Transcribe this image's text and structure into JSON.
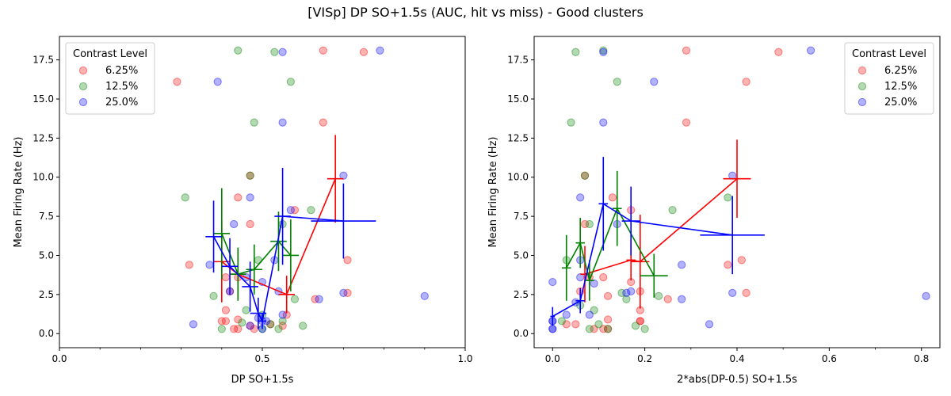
{
  "figure": {
    "title": "[VISp] DP SO+1.5s (AUC, hit vs miss) - Good clusters"
  },
  "colors": {
    "6.25%": "#ff0000",
    "12.5%": "#008000",
    "25.0%": "#0000ff"
  },
  "chart_data": [
    {
      "type": "scatter",
      "xlabel": "DP SO+1.5s",
      "ylabel": "Mean Firing Rate (Hz)",
      "xlim": [
        0,
        1
      ],
      "ylim": [
        -0.9,
        19.0
      ],
      "xticks": [
        0.0,
        0.5,
        1.0
      ],
      "xtick_labels": [
        "0.0",
        "0.5",
        "1.0"
      ],
      "xminor": [
        0.1,
        0.2,
        0.3,
        0.4,
        0.6,
        0.7,
        0.8,
        0.9
      ],
      "yticks": [
        0.0,
        2.5,
        5.0,
        7.5,
        10.0,
        12.5,
        15.0,
        17.5
      ],
      "ytick_labels": [
        "0.0",
        "2.5",
        "5.0",
        "7.5",
        "10.0",
        "12.5",
        "15.0",
        "17.5"
      ],
      "legend": {
        "title": "Contrast Level",
        "position": "upper-left",
        "entries": [
          "6.25%",
          "12.5%",
          "25.0%"
        ]
      },
      "grid": false,
      "series": [
        {
          "name": "6.25%",
          "points": [
            [
              0.29,
              16.1
            ],
            [
              0.65,
              18.1
            ],
            [
              0.75,
              18.0
            ],
            [
              0.65,
              13.5
            ],
            [
              0.47,
              10.1
            ],
            [
              0.44,
              8.7
            ],
            [
              0.47,
              7.0
            ],
            [
              0.58,
              7.9
            ],
            [
              0.71,
              4.7
            ],
            [
              0.32,
              4.4
            ],
            [
              0.41,
              3.6
            ],
            [
              0.42,
              2.7
            ],
            [
              0.44,
              3.6
            ],
            [
              0.41,
              1.5
            ],
            [
              0.41,
              0.8
            ],
            [
              0.4,
              0.8
            ],
            [
              0.44,
              0.9
            ],
            [
              0.43,
              0.3
            ],
            [
              0.44,
              0.3
            ],
            [
              0.47,
              0.5
            ],
            [
              0.52,
              0.6
            ],
            [
              0.55,
              0.5
            ],
            [
              0.56,
              1.2
            ],
            [
              0.63,
              2.2
            ],
            [
              0.71,
              2.6
            ],
            [
              0.48,
              0.3
            ]
          ],
          "means": [
            {
              "x": 0.4,
              "y": 4.6,
              "xerr": 0.02,
              "yerr": 2.6
            },
            {
              "x": 0.44,
              "y": 3.8,
              "xerr": 0.02,
              "yerr": 1.6
            },
            {
              "x": 0.56,
              "y": 2.5,
              "xerr": 0.02,
              "yerr": 1.2
            },
            {
              "x": 0.68,
              "y": 9.9,
              "xerr": 0.02,
              "yerr": 2.8
            }
          ]
        },
        {
          "name": "12.5%",
          "points": [
            [
              0.31,
              8.7
            ],
            [
              0.44,
              18.1
            ],
            [
              0.53,
              18.0
            ],
            [
              0.57,
              16.1
            ],
            [
              0.48,
              13.5
            ],
            [
              0.47,
              10.1
            ],
            [
              0.62,
              7.9
            ],
            [
              0.55,
              7.0
            ],
            [
              0.38,
              2.4
            ],
            [
              0.49,
              4.7
            ],
            [
              0.46,
              1.5
            ],
            [
              0.4,
              0.3
            ],
            [
              0.45,
              0.7
            ],
            [
              0.5,
              0.3
            ],
            [
              0.52,
              0.6
            ],
            [
              0.54,
              0.3
            ],
            [
              0.55,
              0.8
            ],
            [
              0.58,
              2.2
            ],
            [
              0.6,
              0.5
            ],
            [
              0.5,
              1.2
            ]
          ],
          "means": [
            {
              "x": 0.4,
              "y": 6.4,
              "xerr": 0.02,
              "yerr": 2.9
            },
            {
              "x": 0.44,
              "y": 3.8,
              "xerr": 0.02,
              "yerr": 1.7
            },
            {
              "x": 0.48,
              "y": 4.1,
              "xerr": 0.02,
              "yerr": 1.6
            },
            {
              "x": 0.54,
              "y": 5.9,
              "xerr": 0.02,
              "yerr": 1.9
            },
            {
              "x": 0.57,
              "y": 5.0,
              "xerr": 0.02,
              "yerr": 2.3
            }
          ]
        },
        {
          "name": "25.0%",
          "points": [
            [
              0.39,
              16.1
            ],
            [
              0.55,
              18.0
            ],
            [
              0.79,
              18.1
            ],
            [
              0.55,
              13.5
            ],
            [
              0.7,
              10.1
            ],
            [
              0.47,
              8.7
            ],
            [
              0.57,
              7.9
            ],
            [
              0.43,
              7.0
            ],
            [
              0.37,
              4.4
            ],
            [
              0.33,
              0.6
            ],
            [
              0.42,
              2.7
            ],
            [
              0.46,
              3.6
            ],
            [
              0.5,
              3.3
            ],
            [
              0.53,
              4.7
            ],
            [
              0.47,
              0.5
            ],
            [
              0.49,
              1.0
            ],
            [
              0.5,
              0.8
            ],
            [
              0.51,
              0.8
            ],
            [
              0.5,
              0.3
            ],
            [
              0.54,
              2.7
            ],
            [
              0.55,
              1.2
            ],
            [
              0.64,
              2.2
            ],
            [
              0.7,
              2.6
            ],
            [
              0.9,
              2.4
            ]
          ],
          "means": [
            {
              "x": 0.38,
              "y": 6.2,
              "xerr": 0.02,
              "yerr": 2.3
            },
            {
              "x": 0.42,
              "y": 4.3,
              "xerr": 0.02,
              "yerr": 1.8
            },
            {
              "x": 0.47,
              "y": 3.0,
              "xerr": 0.02,
              "yerr": 1.6
            },
            {
              "x": 0.49,
              "y": 1.3,
              "xerr": 0.02,
              "yerr": 1.0
            },
            {
              "x": 0.5,
              "y": 0.8,
              "xerr": 0.01,
              "yerr": 0.5
            },
            {
              "x": 0.55,
              "y": 7.5,
              "xerr": 0.02,
              "yerr": 3.1
            },
            {
              "x": 0.7,
              "y": 7.2,
              "xerr": 0.08,
              "yerr": 2.4
            }
          ]
        }
      ]
    },
    {
      "type": "scatter",
      "xlabel": "2*abs(DP-0.5) SO+1.5s",
      "ylabel": "Mean Firing Rate (Hz)",
      "xlim": [
        -0.04,
        0.84
      ],
      "ylim": [
        -0.9,
        19.0
      ],
      "xticks": [
        0.0,
        0.2,
        0.4,
        0.6,
        0.8
      ],
      "xtick_labels": [
        "0.0",
        "0.2",
        "0.4",
        "0.6",
        "0.8"
      ],
      "xminor": [
        0.1,
        0.3,
        0.5,
        0.7
      ],
      "yticks": [
        0.0,
        2.5,
        5.0,
        7.5,
        10.0,
        12.5,
        15.0,
        17.5
      ],
      "ytick_labels": [
        "0.0",
        "2.5",
        "5.0",
        "7.5",
        "10.0",
        "12.5",
        "15.0",
        "17.5"
      ],
      "legend": {
        "title": "Contrast Level",
        "position": "upper-right",
        "entries": [
          "6.25%",
          "12.5%",
          "25.0%"
        ]
      },
      "grid": false,
      "series": [
        {
          "name": "6.25%",
          "points": [
            [
              0.29,
              18.1
            ],
            [
              0.49,
              18.0
            ],
            [
              0.42,
              16.1
            ],
            [
              0.29,
              13.5
            ],
            [
              0.07,
              10.1
            ],
            [
              0.13,
              8.7
            ],
            [
              0.07,
              7.0
            ],
            [
              0.17,
              7.9
            ],
            [
              0.41,
              4.7
            ],
            [
              0.38,
              4.4
            ],
            [
              0.08,
              3.6
            ],
            [
              0.11,
              3.6
            ],
            [
              0.12,
              2.4
            ],
            [
              0.06,
              2.7
            ],
            [
              0.17,
              3.3
            ],
            [
              0.19,
              2.7
            ],
            [
              0.19,
              1.5
            ],
            [
              0.19,
              0.8
            ],
            [
              0.19,
              0.8
            ],
            [
              0.12,
              0.9
            ],
            [
              0.11,
              0.3
            ],
            [
              0.12,
              0.3
            ],
            [
              0.05,
              0.6
            ],
            [
              0.03,
              0.6
            ],
            [
              0.25,
              2.2
            ],
            [
              0.42,
              2.6
            ],
            [
              0.09,
              0.3
            ]
          ],
          "means": [
            {
              "x": 0.07,
              "y": 3.8,
              "xerr": 0.01,
              "yerr": 1.8
            },
            {
              "x": 0.17,
              "y": 4.7,
              "xerr": 0.01,
              "yerr": 1.3
            },
            {
              "x": 0.19,
              "y": 4.6,
              "xerr": 0.02,
              "yerr": 3.0
            },
            {
              "x": 0.4,
              "y": 9.9,
              "xerr": 0.03,
              "yerr": 2.5
            }
          ]
        },
        {
          "name": "12.5%",
          "points": [
            [
              0.05,
              18.0
            ],
            [
              0.11,
              18.1
            ],
            [
              0.14,
              16.1
            ],
            [
              0.04,
              13.5
            ],
            [
              0.07,
              10.1
            ],
            [
              0.38,
              8.7
            ],
            [
              0.26,
              7.9
            ],
            [
              0.08,
              7.0
            ],
            [
              0.23,
              2.4
            ],
            [
              0.03,
              4.7
            ],
            [
              0.09,
              1.5
            ],
            [
              0.02,
              0.8
            ],
            [
              0.1,
              0.6
            ],
            [
              0.12,
              0.3
            ],
            [
              0.15,
              2.6
            ],
            [
              0.16,
              2.2
            ],
            [
              0.18,
              0.5
            ],
            [
              0.2,
              0.3
            ],
            [
              0.08,
              0.3
            ],
            [
              0.06,
              1.8
            ]
          ],
          "means": [
            {
              "x": 0.03,
              "y": 4.2,
              "xerr": 0.01,
              "yerr": 2.1
            },
            {
              "x": 0.06,
              "y": 5.8,
              "xerr": 0.01,
              "yerr": 1.6
            },
            {
              "x": 0.08,
              "y": 3.4,
              "xerr": 0.01,
              "yerr": 1.3
            },
            {
              "x": 0.14,
              "y": 8.0,
              "xerr": 0.01,
              "yerr": 2.4
            },
            {
              "x": 0.22,
              "y": 3.7,
              "xerr": 0.03,
              "yerr": 1.4
            }
          ]
        },
        {
          "name": "25.0%",
          "points": [
            [
              0.11,
              18.0
            ],
            [
              0.56,
              18.1
            ],
            [
              0.22,
              16.1
            ],
            [
              0.11,
              13.5
            ],
            [
              0.39,
              10.1
            ],
            [
              0.06,
              8.7
            ],
            [
              0.14,
              7.0
            ],
            [
              0.28,
              4.4
            ],
            [
              0.0,
              3.3
            ],
            [
              0.06,
              4.7
            ],
            [
              0.06,
              3.6
            ],
            [
              0.09,
              3.2
            ],
            [
              0.16,
              2.6
            ],
            [
              0.17,
              2.7
            ],
            [
              0.28,
              2.2
            ],
            [
              0.39,
              2.6
            ],
            [
              0.34,
              0.6
            ],
            [
              0.08,
              1.2
            ],
            [
              0.05,
              2.0
            ],
            [
              0.0,
              0.8
            ],
            [
              0.0,
              0.8
            ],
            [
              0.0,
              0.3
            ],
            [
              0.0,
              0.3
            ],
            [
              0.81,
              2.4
            ],
            [
              0.03,
              1.2
            ]
          ],
          "means": [
            {
              "x": 0.0,
              "y": 1.1,
              "xerr": 0.005,
              "yerr": 0.6
            },
            {
              "x": 0.06,
              "y": 2.1,
              "xerr": 0.01,
              "yerr": 0.8
            },
            {
              "x": 0.11,
              "y": 8.3,
              "xerr": 0.01,
              "yerr": 3.0
            },
            {
              "x": 0.17,
              "y": 7.2,
              "xerr": 0.02,
              "yerr": 2.2
            },
            {
              "x": 0.39,
              "y": 6.3,
              "xerr": 0.07,
              "yerr": 2.5
            }
          ]
        }
      ]
    }
  ]
}
